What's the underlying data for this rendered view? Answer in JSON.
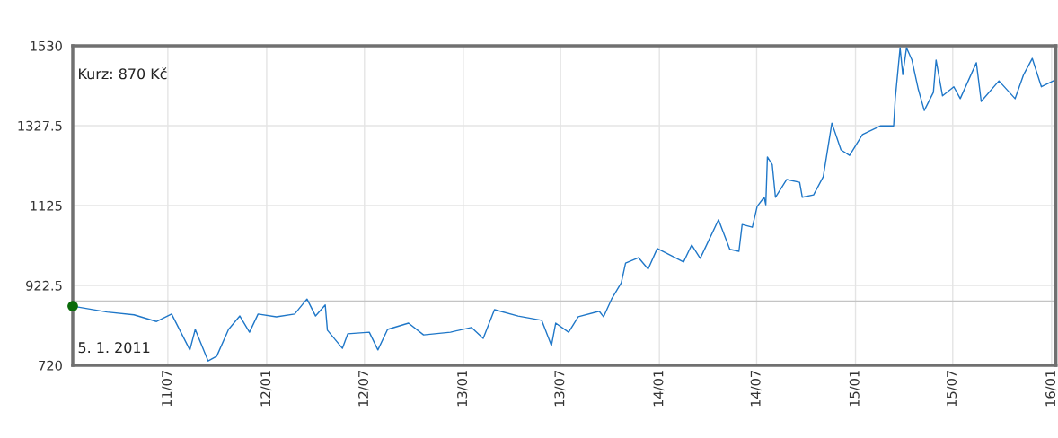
{
  "chart_data": {
    "type": "line",
    "annotations": [
      "Kurz: 870 Kč",
      "5. 1. 2011"
    ],
    "series": [
      {
        "color": "#1f77c8",
        "x": [
          "2011-01-05",
          "2011-03-10",
          "2011-04-29",
          "2011-06-10",
          "2011-07-08",
          "2011-08-11",
          "2011-08-21",
          "2011-09-14",
          "2011-09-30",
          "2011-10-22",
          "2011-11-12",
          "2011-11-30",
          "2011-12-16",
          "2012-01-19",
          "2012-02-22",
          "2012-03-16",
          "2012-04-01",
          "2012-04-19",
          "2012-04-23",
          "2012-05-21",
          "2012-05-31",
          "2012-07-10",
          "2012-07-26",
          "2012-08-13",
          "2012-09-21",
          "2012-10-19",
          "2012-12-08",
          "2013-01-16",
          "2013-02-07",
          "2013-02-28",
          "2013-04-13",
          "2013-05-27",
          "2013-06-14",
          "2013-06-22",
          "2013-07-16",
          "2013-08-03",
          "2013-09-11",
          "2013-09-19",
          "2013-10-04",
          "2013-10-22",
          "2013-10-30",
          "2013-11-23",
          "2013-12-11",
          "2013-12-28",
          "2014-02-15",
          "2014-03-02",
          "2014-03-18",
          "2014-04-21",
          "2014-05-12",
          "2014-05-29",
          "2014-06-04",
          "2014-06-23",
          "2014-07-02",
          "2014-07-15",
          "2014-07-18",
          "2014-07-21",
          "2014-07-30",
          "2014-08-05",
          "2014-08-26",
          "2014-09-19",
          "2014-09-24",
          "2014-10-15",
          "2014-11-02",
          "2014-11-18",
          "2014-12-05",
          "2014-12-21",
          "2015-01-14",
          "2015-02-17",
          "2015-03-13",
          "2015-03-16",
          "2015-03-25",
          "2015-03-30",
          "2015-04-06",
          "2015-04-16",
          "2015-04-28",
          "2015-05-09",
          "2015-05-26",
          "2015-05-31",
          "2015-06-12",
          "2015-07-03",
          "2015-07-15",
          "2015-08-14",
          "2015-08-23",
          "2015-09-25",
          "2015-10-25",
          "2015-11-10",
          "2015-11-26",
          "2015-12-13",
          "2016-01-04"
        ],
        "values": [
          870,
          855,
          848,
          831,
          850,
          759,
          811,
          731,
          743,
          811,
          845,
          804,
          850,
          843,
          850,
          888,
          845,
          873,
          809,
          763,
          800,
          804,
          759,
          811,
          827,
          797,
          804,
          816,
          788,
          861,
          845,
          834,
          770,
          827,
          804,
          843,
          857,
          843,
          888,
          929,
          979,
          993,
          964,
          1016,
          982,
          1025,
          991,
          1089,
          1014,
          1009,
          1077,
          1070,
          1123,
          1146,
          1127,
          1248,
          1229,
          1146,
          1191,
          1184,
          1146,
          1152,
          1198,
          1334,
          1266,
          1252,
          1305,
          1327,
          1327,
          1396,
          1525,
          1457,
          1525,
          1494,
          1419,
          1366,
          1412,
          1494,
          1403,
          1426,
          1396,
          1487,
          1389,
          1441,
          1396,
          1457,
          1498,
          1426,
          1441
        ]
      },
      {
        "type": "scatter",
        "color": "#0b6b0b",
        "marker": "circle",
        "x": [
          "2011-01-05"
        ],
        "values": [
          870
        ]
      }
    ],
    "xlim": [
      "2011-01-05",
      "2016-01-09"
    ],
    "xticks": [
      {
        "value": "2011-07-01",
        "label": "11/07"
      },
      {
        "value": "2012-01-01",
        "label": "12/01"
      },
      {
        "value": "2012-07-01",
        "label": "12/07"
      },
      {
        "value": "2013-01-01",
        "label": "13/01"
      },
      {
        "value": "2013-07-01",
        "label": "13/07"
      },
      {
        "value": "2014-01-01",
        "label": "14/01"
      },
      {
        "value": "2014-07-01",
        "label": "14/07"
      },
      {
        "value": "2015-01-01",
        "label": "15/01"
      },
      {
        "value": "2015-07-01",
        "label": "15/07"
      },
      {
        "value": "2016-01-01",
        "label": "16/01"
      }
    ],
    "ylim": [
      720,
      1530
    ],
    "yticks": [
      720,
      922.5,
      1125,
      1327.5,
      1530
    ],
    "ref_lines": [
      {
        "axis": "y",
        "value": 882,
        "label": null,
        "color": "#c4c4c4"
      }
    ],
    "grid": true
  }
}
